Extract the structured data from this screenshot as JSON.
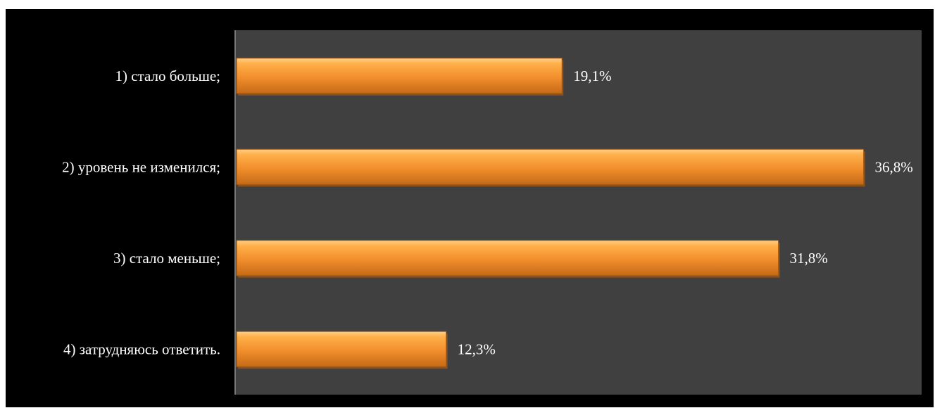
{
  "chart_data": {
    "type": "bar",
    "orientation": "horizontal",
    "categories": [
      "1) стало больше;",
      "2) уровень не изменился;",
      "3) стало меньше;",
      "4) затрудняюсь ответить."
    ],
    "values": [
      19.1,
      36.8,
      31.8,
      12.3
    ],
    "value_labels": [
      "19,1%",
      "36,8%",
      "31,8%",
      "12,3%"
    ],
    "unit": "%",
    "xlim": [
      0,
      40
    ],
    "grid": false,
    "legend": "none",
    "colors": {
      "frame_background": "#000000",
      "plot_background": "#404040",
      "bar_fill": "#f28e2c",
      "bar_highlight": "#ffc57a",
      "bar_shadow": "#b65f12",
      "text": "#ffffff",
      "axis": "#8a8a8a"
    }
  }
}
